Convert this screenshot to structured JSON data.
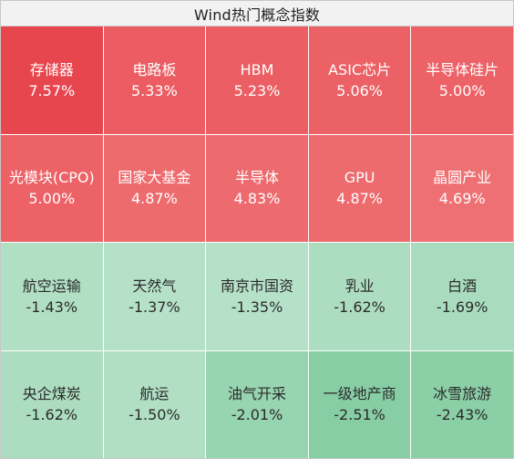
{
  "title": "Wind热门概念指数",
  "tiles": [
    {
      "name": "存储器",
      "pct": "7.57%",
      "bg": "#e8464e",
      "dir": "up"
    },
    {
      "name": "电路板",
      "pct": "5.33%",
      "bg": "#eb5d62",
      "dir": "up"
    },
    {
      "name": "HBM",
      "pct": "5.23%",
      "bg": "#eb5e63",
      "dir": "up"
    },
    {
      "name": "ASIC芯片",
      "pct": "5.06%",
      "bg": "#ec6166",
      "dir": "up"
    },
    {
      "name": "半导体硅片",
      "pct": "5.00%",
      "bg": "#ec6266",
      "dir": "up"
    },
    {
      "name": "光模块(CPO)",
      "pct": "5.00%",
      "bg": "#ec6266",
      "dir": "up"
    },
    {
      "name": "国家大基金",
      "pct": "4.87%",
      "bg": "#ed6a6d",
      "dir": "up"
    },
    {
      "name": "半导体",
      "pct": "4.83%",
      "bg": "#ed6b6e",
      "dir": "up"
    },
    {
      "name": "GPU",
      "pct": "4.87%",
      "bg": "#ed6a6d",
      "dir": "up"
    },
    {
      "name": "晶圆产业",
      "pct": "4.69%",
      "bg": "#ee7073",
      "dir": "up"
    },
    {
      "name": "航空运输",
      "pct": "-1.43%",
      "bg": "#b0dfc4",
      "dir": "down"
    },
    {
      "name": "天然气",
      "pct": "-1.37%",
      "bg": "#b4e1c7",
      "dir": "down"
    },
    {
      "name": "南京市国资",
      "pct": "-1.35%",
      "bg": "#b5e1c8",
      "dir": "down"
    },
    {
      "name": "乳业",
      "pct": "-1.62%",
      "bg": "#acddc0",
      "dir": "down"
    },
    {
      "name": "白酒",
      "pct": "-1.69%",
      "bg": "#a9dcbe",
      "dir": "down"
    },
    {
      "name": "央企煤炭",
      "pct": "-1.62%",
      "bg": "#acddc0",
      "dir": "down"
    },
    {
      "name": "航运",
      "pct": "-1.50%",
      "bg": "#b0dfc4",
      "dir": "down"
    },
    {
      "name": "油气开采",
      "pct": "-2.01%",
      "bg": "#97d4b0",
      "dir": "down"
    },
    {
      "name": "一级地产商",
      "pct": "-2.51%",
      "bg": "#88cea5",
      "dir": "down"
    },
    {
      "name": "冰雪旅游",
      "pct": "-2.43%",
      "bg": "#8bcfa7",
      "dir": "down"
    }
  ]
}
